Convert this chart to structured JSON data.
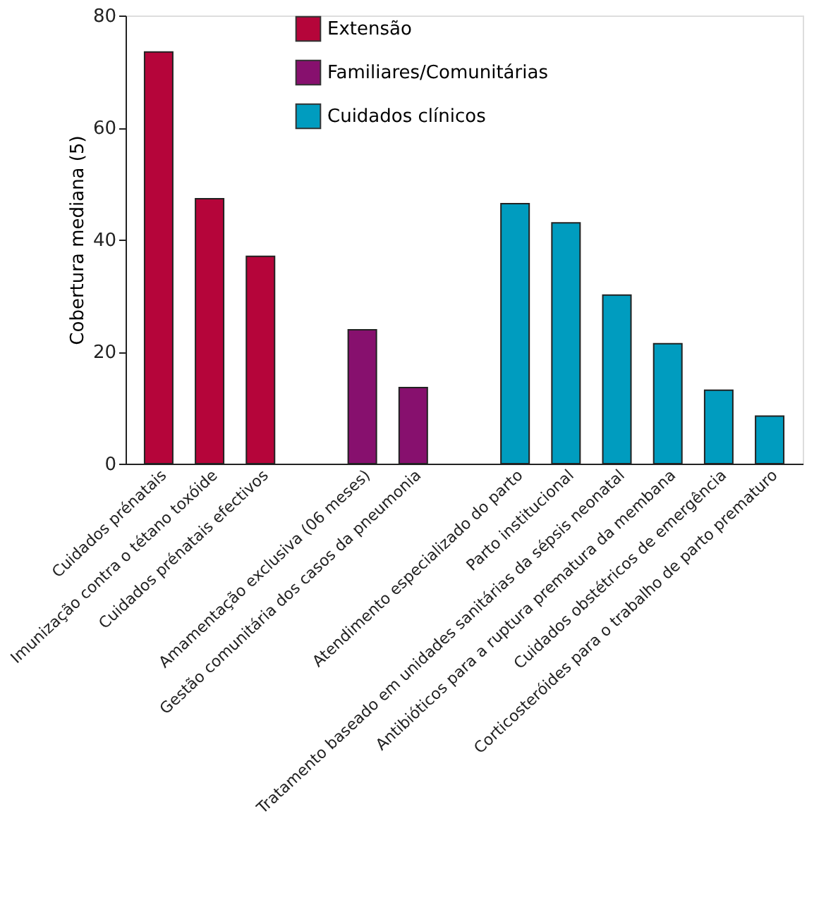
{
  "chart_data": {
    "type": "bar",
    "ylabel": "Cobertura mediana (5)",
    "categories": [
      "Cuidados prénatais",
      "Imunização contra o tétano toxóide",
      "Cuidados prénatais efectivos",
      null,
      "Amamentação exclusiva (06 meses)",
      "Gestão comunitária dos casos da pneumonia",
      null,
      "Atendimento especializado do parto",
      "Parto institucional",
      "Tratamento baseado em unidades sanitárias da sépsis neonatal",
      "Antibióticos para a ruptura prematura da membana",
      "Cuidados obstétricos de emergência",
      "Corticosteróides para o trabalho de parto prematuro"
    ],
    "series": [
      {
        "name": "Extensão",
        "color": "#b5053a",
        "values": [
          73.5,
          47.3,
          37,
          null,
          null,
          null,
          null,
          null,
          null,
          null,
          null,
          null,
          null
        ]
      },
      {
        "name": "Familiares/Comunitárias",
        "color": "#87106e",
        "values": [
          null,
          null,
          null,
          null,
          23.9,
          13.6,
          null,
          null,
          null,
          null,
          null,
          null,
          null
        ]
      },
      {
        "name": "Cuidados clínicos",
        "color": "#009cbf",
        "values": [
          null,
          null,
          null,
          null,
          null,
          null,
          null,
          46.4,
          43,
          30.1,
          21.4,
          13.1,
          8.5
        ]
      }
    ],
    "ylim": [
      0,
      80
    ],
    "yticks": [
      0,
      20,
      40,
      60,
      80
    ],
    "grid": false,
    "legend": "top"
  }
}
